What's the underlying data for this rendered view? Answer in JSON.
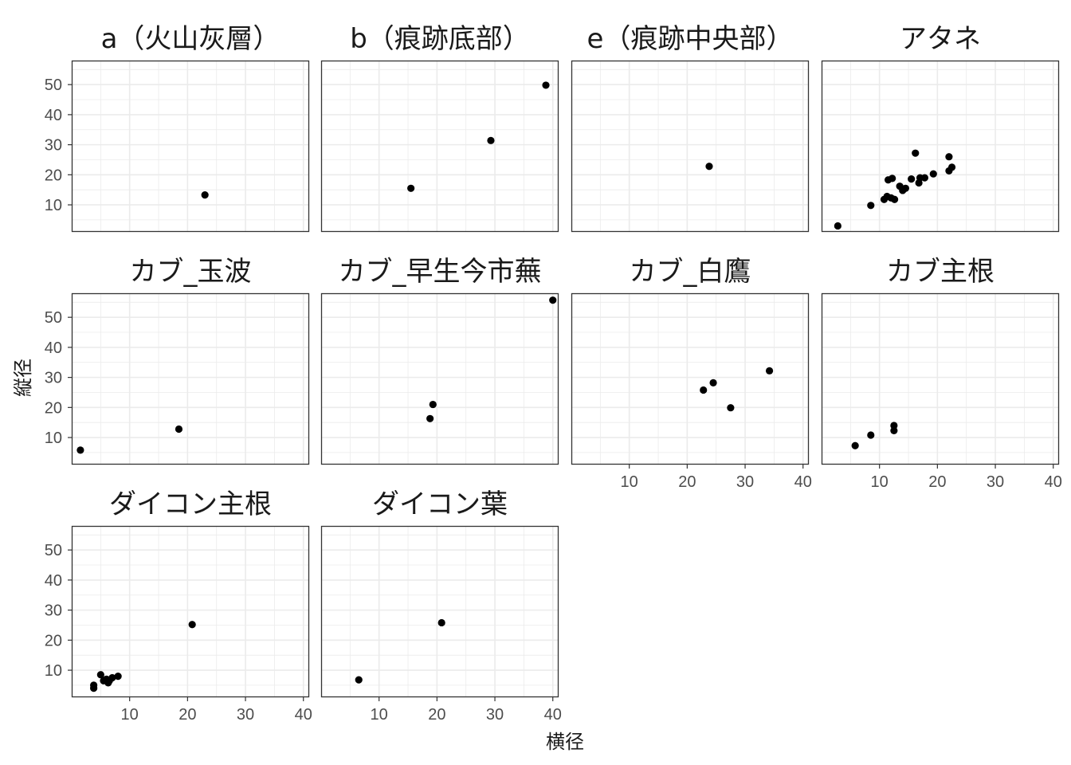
{
  "chart_data": {
    "type": "scatter",
    "xlabel": "横径",
    "ylabel": "縦径",
    "xlim": [
      0,
      41
    ],
    "ylim": [
      1,
      58
    ],
    "x_ticks": [
      10,
      20,
      30,
      40
    ],
    "y_ticks": [
      10,
      20,
      30,
      40,
      50
    ],
    "grid": true,
    "point_color": "#000000",
    "grid_color": "#ebebeb",
    "panel_border_color": "#333333",
    "panels": [
      {
        "name": "a（火山灰層）",
        "points": [
          [
            23,
            13.3
          ]
        ]
      },
      {
        "name": "b（痕跡底部）",
        "points": [
          [
            15.5,
            15.5
          ],
          [
            29.3,
            31.4
          ],
          [
            38.8,
            49.8
          ]
        ]
      },
      {
        "name": "e（痕跡中央部）",
        "points": [
          [
            23.8,
            22.8
          ]
        ]
      },
      {
        "name": "アタネ",
        "points": [
          [
            2.8,
            3
          ],
          [
            8.5,
            9.8
          ],
          [
            10.8,
            11.8
          ],
          [
            11.3,
            12.8
          ],
          [
            11.5,
            18.3
          ],
          [
            12,
            12.3
          ],
          [
            12.2,
            18.8
          ],
          [
            12.6,
            11.8
          ],
          [
            13.5,
            16.2
          ],
          [
            14,
            14.8
          ],
          [
            14.5,
            15.5
          ],
          [
            15.5,
            18.6
          ],
          [
            16.2,
            27.2
          ],
          [
            16.8,
            17.3
          ],
          [
            17,
            19
          ],
          [
            17.8,
            19
          ],
          [
            19.3,
            20.3
          ],
          [
            22,
            26
          ],
          [
            22,
            21.3
          ],
          [
            22.5,
            22.5
          ]
        ]
      },
      {
        "name": "カブ_玉波",
        "points": [
          [
            1.5,
            5.8
          ],
          [
            18.5,
            12.8
          ]
        ]
      },
      {
        "name": "カブ_早生今市蕪",
        "points": [
          [
            18.8,
            16.3
          ],
          [
            19.3,
            21
          ],
          [
            40,
            55.7
          ]
        ]
      },
      {
        "name": "カブ_白鷹",
        "points": [
          [
            22.8,
            25.8
          ],
          [
            24.5,
            28.2
          ],
          [
            27.5,
            19.9
          ],
          [
            34.2,
            32.2
          ]
        ]
      },
      {
        "name": "カブ主根",
        "points": [
          [
            5.8,
            7.3
          ],
          [
            8.5,
            10.8
          ],
          [
            12.5,
            12.3
          ],
          [
            12.5,
            14
          ]
        ]
      },
      {
        "name": "ダイコン主根",
        "points": [
          [
            3.8,
            4
          ],
          [
            3.8,
            5
          ],
          [
            5,
            8.5
          ],
          [
            5.5,
            6.5
          ],
          [
            6,
            7
          ],
          [
            6.3,
            5.8
          ],
          [
            6.5,
            6.5
          ],
          [
            7,
            7.5
          ],
          [
            8,
            8
          ],
          [
            20.8,
            25.2
          ]
        ]
      },
      {
        "name": "ダイコン葉",
        "points": [
          [
            6.5,
            6.8
          ],
          [
            20.8,
            25.8
          ]
        ]
      }
    ]
  }
}
